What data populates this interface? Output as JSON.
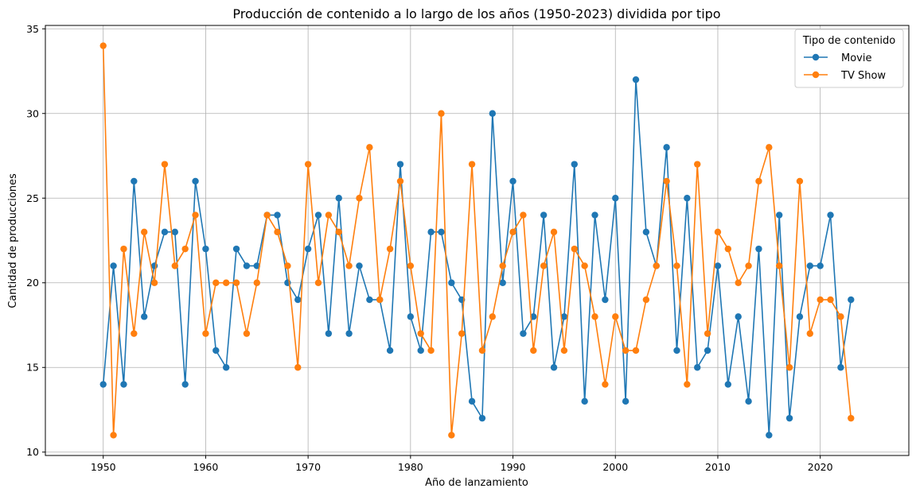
{
  "chart_data": {
    "type": "line",
    "title": "Producción de contenido a lo largo de los años (1950-2023) dividida por tipo",
    "xlabel": "Año de lanzamiento",
    "ylabel": "Cantidad de producciones",
    "xlim": [
      1944.35,
      2028.65
    ],
    "ylim": [
      9.8,
      35.2
    ],
    "xticks": [
      1950,
      1960,
      1970,
      1980,
      1990,
      2000,
      2010,
      2020
    ],
    "yticks": [
      10,
      15,
      20,
      25,
      30,
      35
    ],
    "grid": true,
    "legend": {
      "title": "Tipo de contenido",
      "position": "top-right"
    },
    "x": [
      1950,
      1951,
      1952,
      1953,
      1954,
      1955,
      1956,
      1957,
      1958,
      1959,
      1960,
      1961,
      1962,
      1963,
      1964,
      1965,
      1966,
      1967,
      1968,
      1969,
      1970,
      1971,
      1972,
      1973,
      1974,
      1975,
      1976,
      1977,
      1978,
      1979,
      1980,
      1981,
      1982,
      1983,
      1984,
      1985,
      1986,
      1987,
      1988,
      1989,
      1990,
      1991,
      1992,
      1993,
      1994,
      1995,
      1996,
      1997,
      1998,
      1999,
      2000,
      2001,
      2002,
      2003,
      2004,
      2005,
      2006,
      2007,
      2008,
      2009,
      2010,
      2011,
      2012,
      2013,
      2014,
      2015,
      2016,
      2017,
      2018,
      2019,
      2020,
      2021,
      2022,
      2023
    ],
    "series": [
      {
        "name": "Movie",
        "color": "#1f77b4",
        "values": [
          14,
          21,
          14,
          26,
          18,
          21,
          23,
          23,
          14,
          26,
          22,
          16,
          15,
          22,
          21,
          21,
          24,
          24,
          20,
          19,
          22,
          24,
          17,
          25,
          17,
          21,
          19,
          19,
          16,
          27,
          18,
          16,
          23,
          23,
          20,
          19,
          13,
          12,
          30,
          20,
          26,
          17,
          18,
          24,
          15,
          18,
          27,
          13,
          24,
          19,
          25,
          13,
          32,
          23,
          21,
          28,
          16,
          25,
          15,
          16,
          21,
          14,
          18,
          13,
          22,
          11,
          24,
          12,
          18,
          21,
          21,
          24,
          15,
          19
        ]
      },
      {
        "name": "TV Show",
        "color": "#ff7f0e",
        "values": [
          34,
          11,
          22,
          17,
          23,
          20,
          27,
          21,
          22,
          24,
          17,
          20,
          20,
          20,
          17,
          20,
          24,
          23,
          21,
          15,
          27,
          20,
          24,
          23,
          21,
          25,
          28,
          19,
          22,
          26,
          21,
          17,
          16,
          30,
          11,
          17,
          27,
          16,
          18,
          21,
          23,
          24,
          16,
          21,
          23,
          16,
          22,
          21,
          18,
          14,
          18,
          16,
          16,
          19,
          21,
          26,
          21,
          14,
          27,
          17,
          23,
          22,
          20,
          21,
          26,
          28,
          21,
          15,
          26,
          17,
          19,
          19,
          18,
          12
        ]
      }
    ]
  }
}
